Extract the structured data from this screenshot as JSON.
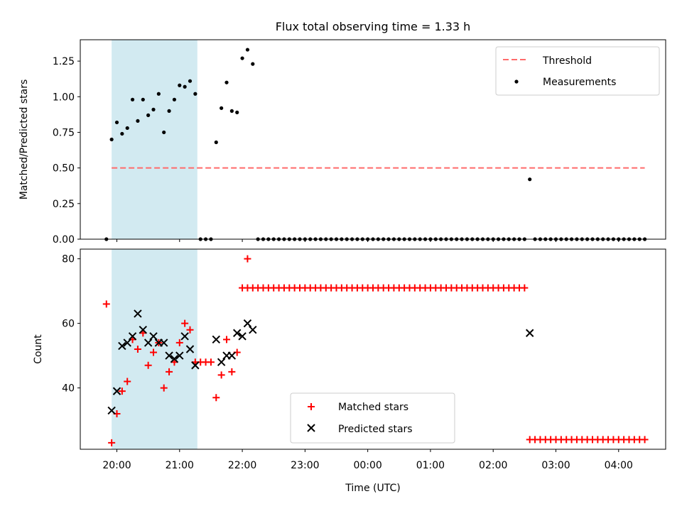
{
  "title": "Flux total observing time = 1.33 h",
  "colors": {
    "threshold": "#ff6b6b",
    "matched": "#ff0000",
    "predicted": "#000000",
    "measurement": "#000000",
    "shade": "#add8e6"
  },
  "chart_data": [
    {
      "type": "scatter",
      "ylabel": "Matched/Predicted stars",
      "xlabel": "",
      "ylim": [
        0,
        1.4
      ],
      "yticks": [
        0,
        0.25,
        0.5,
        0.75,
        1.0,
        1.25
      ],
      "ytick_labels": [
        "0.00",
        "0.25",
        "0.50",
        "0.75",
        "1.00",
        "1.25"
      ],
      "shaded_interval": [
        "19:55",
        "21:17"
      ],
      "legend": {
        "position": "top-right",
        "entries": [
          "Threshold",
          "Measurements"
        ]
      },
      "threshold": {
        "name": "Threshold",
        "y": 0.5,
        "x_range": [
          "19:55",
          "04:25"
        ]
      },
      "measurements": {
        "name": "Measurements",
        "points": [
          [
            "19:50",
            0.0
          ],
          [
            "19:55",
            0.7
          ],
          [
            "20:00",
            0.82
          ],
          [
            "20:05",
            0.74
          ],
          [
            "20:10",
            0.78
          ],
          [
            "20:15",
            0.98
          ],
          [
            "20:20",
            0.83
          ],
          [
            "20:25",
            0.98
          ],
          [
            "20:30",
            0.87
          ],
          [
            "20:35",
            0.91
          ],
          [
            "20:40",
            1.02
          ],
          [
            "20:45",
            0.75
          ],
          [
            "20:50",
            0.9
          ],
          [
            "20:55",
            0.98
          ],
          [
            "21:00",
            1.08
          ],
          [
            "21:05",
            1.07
          ],
          [
            "21:10",
            1.11
          ],
          [
            "21:15",
            1.02
          ],
          [
            "21:20",
            0.0
          ],
          [
            "21:25",
            0.0
          ],
          [
            "21:30",
            0.0
          ],
          [
            "21:35",
            0.68
          ],
          [
            "21:40",
            0.92
          ],
          [
            "21:45",
            1.1
          ],
          [
            "21:50",
            0.9
          ],
          [
            "21:55",
            0.89
          ],
          [
            "22:00",
            1.27
          ],
          [
            "22:05",
            1.33
          ],
          [
            "22:10",
            1.23
          ],
          [
            "02:35",
            0.42
          ]
        ],
        "zero_runs": [
          {
            "start": "22:15",
            "end": "02:30",
            "step_minutes": 5,
            "y": 0
          },
          {
            "start": "02:40",
            "end": "04:25",
            "step_minutes": 5,
            "y": 0
          }
        ]
      }
    },
    {
      "type": "scatter",
      "ylabel": "Count",
      "xlabel": "Time (UTC)",
      "ylim": [
        21,
        83
      ],
      "yticks": [
        40,
        60,
        80
      ],
      "ytick_labels": [
        "40",
        "60",
        "80"
      ],
      "xticks": [
        "20:00",
        "21:00",
        "22:00",
        "23:00",
        "00:00",
        "01:00",
        "02:00",
        "03:00",
        "04:00"
      ],
      "shaded_interval": [
        "19:55",
        "21:17"
      ],
      "legend": {
        "position": "bottom-center",
        "entries": [
          "Matched stars",
          "Predicted stars"
        ]
      },
      "series": [
        {
          "name": "Matched stars",
          "marker": "plus",
          "points": [
            [
              "19:50",
              66
            ],
            [
              "19:55",
              23
            ],
            [
              "20:00",
              32
            ],
            [
              "20:05",
              39
            ],
            [
              "20:10",
              42
            ],
            [
              "20:15",
              55
            ],
            [
              "20:20",
              52
            ],
            [
              "20:25",
              57
            ],
            [
              "20:30",
              47
            ],
            [
              "20:35",
              51
            ],
            [
              "20:40",
              54
            ],
            [
              "20:45",
              40
            ],
            [
              "20:50",
              45
            ],
            [
              "20:55",
              48
            ],
            [
              "21:00",
              54
            ],
            [
              "21:05",
              60
            ],
            [
              "21:10",
              58
            ],
            [
              "21:15",
              48
            ],
            [
              "21:20",
              48
            ],
            [
              "21:25",
              48
            ],
            [
              "21:30",
              48
            ],
            [
              "21:35",
              37
            ],
            [
              "21:40",
              44
            ],
            [
              "21:45",
              55
            ],
            [
              "21:50",
              45
            ],
            [
              "21:55",
              51
            ],
            [
              "22:05",
              80
            ]
          ],
          "runs": [
            {
              "start": "22:00",
              "end": "02:30",
              "step_minutes": 5,
              "y": 71
            },
            {
              "start": "02:35",
              "end": "04:25",
              "step_minutes": 5,
              "y": 24
            }
          ]
        },
        {
          "name": "Predicted stars",
          "marker": "x",
          "points": [
            [
              "19:55",
              33
            ],
            [
              "20:00",
              39
            ],
            [
              "20:05",
              53
            ],
            [
              "20:10",
              54
            ],
            [
              "20:15",
              56
            ],
            [
              "20:20",
              63
            ],
            [
              "20:25",
              58
            ],
            [
              "20:30",
              54
            ],
            [
              "20:35",
              56
            ],
            [
              "20:40",
              54
            ],
            [
              "20:45",
              54
            ],
            [
              "20:50",
              50
            ],
            [
              "20:55",
              49
            ],
            [
              "21:00",
              50
            ],
            [
              "21:05",
              56
            ],
            [
              "21:10",
              52
            ],
            [
              "21:15",
              47
            ],
            [
              "21:35",
              55
            ],
            [
              "21:40",
              48
            ],
            [
              "21:45",
              50
            ],
            [
              "21:50",
              50
            ],
            [
              "21:55",
              57
            ],
            [
              "22:00",
              56
            ],
            [
              "22:05",
              60
            ],
            [
              "22:10",
              58
            ],
            [
              "02:35",
              57
            ]
          ]
        }
      ]
    }
  ]
}
